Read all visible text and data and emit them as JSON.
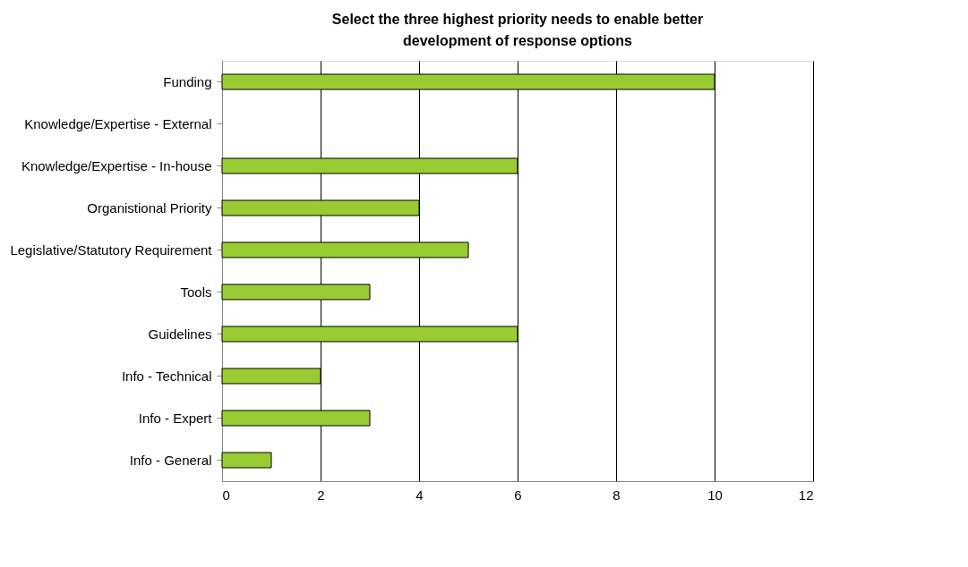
{
  "chart_data": {
    "type": "bar",
    "orientation": "horizontal",
    "title": "Select the three highest priority needs to enable better development of response options",
    "categories": [
      "Funding",
      "Knowledge/Expertise - External",
      "Knowledge/Expertise - In-house",
      "Organistional Priority",
      "Legislative/Statutory Requirement",
      "Tools",
      "Guidelines",
      "Info - Technical",
      "Info - Expert",
      "Info - General"
    ],
    "values": [
      10,
      0,
      6,
      4,
      5,
      3,
      6,
      2,
      3,
      1
    ],
    "color": "#99cc33",
    "xlim": [
      0,
      12
    ],
    "xticks": [
      0,
      2,
      4,
      6,
      8,
      10,
      12
    ],
    "grid": "x"
  }
}
